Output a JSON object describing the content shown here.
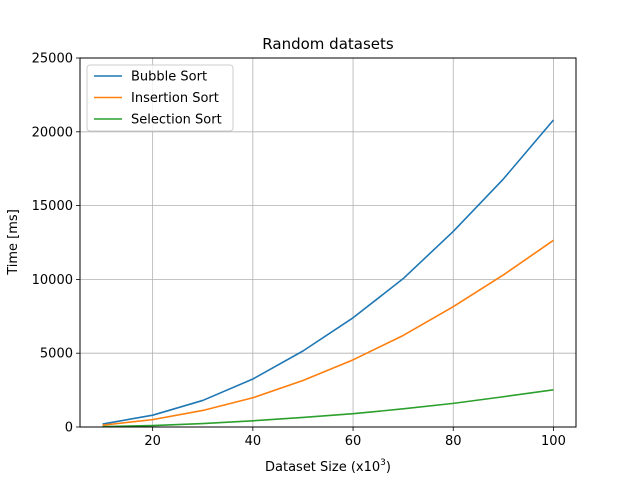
{
  "chart_data": {
    "type": "line",
    "title": "Random datasets",
    "xlabel": "Dataset Size (x10",
    "xlabel_superscript": "3",
    "xlabel_suffix": ")",
    "ylabel": "Time [ms]",
    "xlim": [
      5.5,
      104.5
    ],
    "ylim": [
      0,
      25000
    ],
    "xticks": [
      20,
      40,
      60,
      80,
      100
    ],
    "yticks": [
      0,
      5000,
      10000,
      15000,
      20000,
      25000
    ],
    "grid": true,
    "legend_position": "top-left",
    "x": [
      10,
      20,
      30,
      40,
      50,
      60,
      70,
      80,
      90,
      100
    ],
    "series": [
      {
        "name": "Bubble Sort",
        "color": "#1f77b4",
        "values": [
          200,
          800,
          1800,
          3250,
          5150,
          7400,
          10050,
          13250,
          16800,
          20800
        ]
      },
      {
        "name": "Insertion Sort",
        "color": "#ff7f0e",
        "values": [
          120,
          500,
          1120,
          1980,
          3150,
          4550,
          6200,
          8150,
          10300,
          12650
        ]
      },
      {
        "name": "Selection Sort",
        "color": "#2ca02c",
        "values": [
          25,
          100,
          230,
          420,
          650,
          900,
          1230,
          1600,
          2050,
          2520
        ]
      }
    ]
  }
}
